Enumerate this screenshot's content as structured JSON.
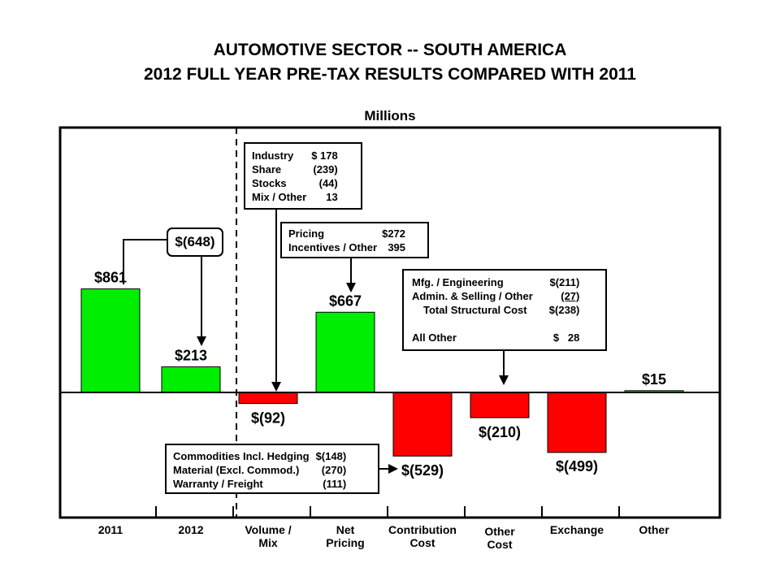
{
  "header": {
    "title_line1": "AUTOMOTIVE SECTOR -- SOUTH AMERICA",
    "title_line2": "2012 FULL YEAR PRE-TAX RESULTS COMPARED WITH 2011",
    "units": "Millions"
  },
  "chart_data": {
    "type": "bar",
    "subtype": "waterfall",
    "categories": [
      "2011",
      "2012",
      "Volume / Mix",
      "Net Pricing",
      "Contribution Cost",
      "Other Cost",
      "Exchange",
      "Other"
    ],
    "values": [
      861,
      213,
      -92,
      667,
      -529,
      -210,
      -499,
      15
    ],
    "value_labels": [
      "$861",
      "$213",
      "$(92)",
      "$667",
      "$(529)",
      "$(210)",
      "$(499)",
      "$15"
    ],
    "colors": {
      "positive": "#00ee00",
      "negative": "#ff0000"
    },
    "change_callout": {
      "label": "$(648)",
      "value": -648
    },
    "ylim": [
      -1000,
      1000
    ],
    "grid": false,
    "legend": "none"
  },
  "detail_boxes": {
    "volume_mix": {
      "rows": [
        {
          "label": "Industry",
          "value": "$ 178"
        },
        {
          "label": "Share",
          "value": "(239)"
        },
        {
          "label": "Stocks",
          "value": "(44)"
        },
        {
          "label": "Mix / Other",
          "value": "13"
        }
      ]
    },
    "net_pricing": {
      "rows": [
        {
          "label": "Pricing",
          "value": "$272"
        },
        {
          "label": "Incentives / Other",
          "value": "395"
        }
      ]
    },
    "other_cost": {
      "rows": [
        {
          "label": "Mfg. / Engineering",
          "value": "$(211)"
        },
        {
          "label": "Admin. & Selling / Other",
          "value": "(27)"
        },
        {
          "label": "Total Structural Cost",
          "value": "$(238)"
        },
        {
          "label": "",
          "value": ""
        },
        {
          "label": "All Other",
          "value": "$   28"
        }
      ]
    },
    "contribution_cost": {
      "rows": [
        {
          "label": "Commodities Incl. Hedging",
          "value": "$(148)"
        },
        {
          "label": "Material (Excl. Commod.)",
          "value": "(270)"
        },
        {
          "label": "Warranty / Freight",
          "value": "(111)"
        }
      ]
    }
  }
}
